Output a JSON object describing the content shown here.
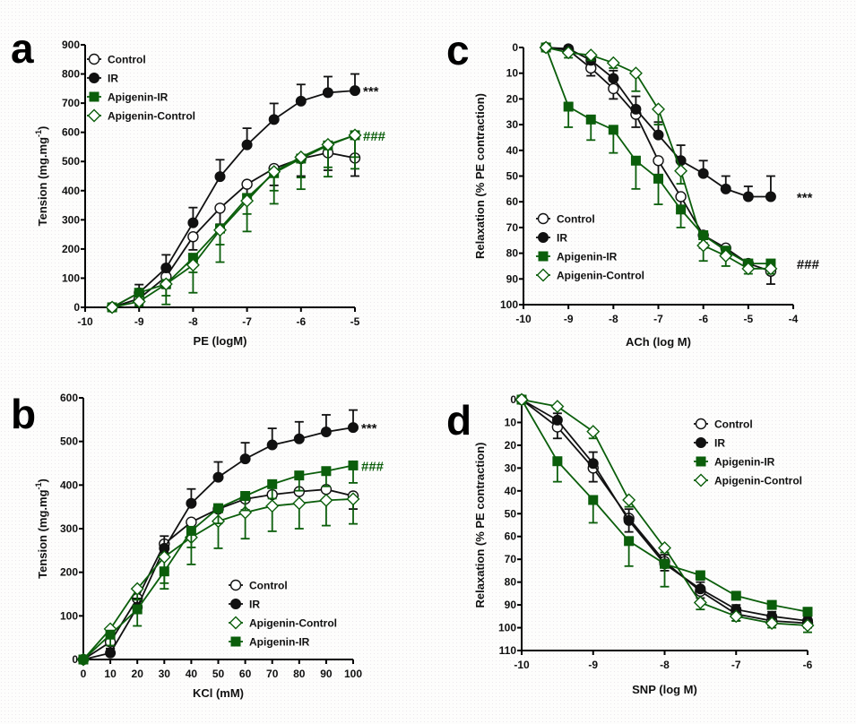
{
  "colors": {
    "black": "#111111",
    "green": "#0b5e0b",
    "white": "#ffffff"
  },
  "chart_data": [
    {
      "id": "a",
      "panel_label": "a",
      "type": "line",
      "xlabel": "PE (logM)",
      "ylabel": "Tension (mg.mg",
      "ylabel_sup": "-1",
      "ylabel_close": ")",
      "xlim": [
        -10,
        -5
      ],
      "ylim": [
        0,
        900
      ],
      "y_inverted": false,
      "xticks": [
        -10,
        -9,
        -8,
        -7,
        -6,
        -5
      ],
      "yticks": [
        0,
        100,
        200,
        300,
        400,
        500,
        600,
        700,
        800,
        900
      ],
      "legend_position": "top-left",
      "legend_order": [
        "Control",
        "IR",
        "Apigenin-IR",
        "Apigenin-Control"
      ],
      "x": [
        -9.5,
        -9,
        -8.5,
        -8,
        -7.5,
        -7,
        -6.5,
        -6,
        -5.5,
        -5
      ],
      "series": [
        {
          "name": "Control",
          "marker": "circle-open",
          "color": "black",
          "values": [
            0,
            30,
            105,
            242,
            340,
            422,
            476,
            510,
            530,
            512
          ],
          "err": [
            0,
            20,
            40,
            45,
            55,
            55,
            58,
            60,
            60,
            62
          ],
          "err_dir": -1
        },
        {
          "name": "IR",
          "marker": "circle-filled",
          "color": "black",
          "values": [
            0,
            50,
            135,
            290,
            448,
            557,
            644,
            707,
            736,
            743
          ],
          "err": [
            0,
            28,
            45,
            52,
            58,
            57,
            55,
            57,
            55,
            57
          ],
          "err_dir": 1
        },
        {
          "name": "Apigenin-IR",
          "marker": "square-filled",
          "color": "green",
          "values": [
            0,
            50,
            80,
            170,
            270,
            375,
            460,
            510,
            555,
            590
          ],
          "err": [
            0,
            25,
            40,
            50,
            55,
            55,
            60,
            65,
            75,
            75
          ],
          "err_dir": -1
        },
        {
          "name": "Apigenin-Control",
          "marker": "diamond-open",
          "color": "green",
          "values": [
            0,
            20,
            80,
            145,
            265,
            365,
            465,
            515,
            558,
            590
          ],
          "err": [
            0,
            15,
            70,
            95,
            110,
            105,
            110,
            110,
            110,
            115
          ],
          "err_dir": -1
        }
      ],
      "annotations": [
        {
          "text": "***",
          "series": "IR",
          "color": "black"
        },
        {
          "text": "###",
          "series": "Apigenin-IR",
          "color": "green"
        }
      ]
    },
    {
      "id": "b",
      "panel_label": "b",
      "type": "line",
      "xlabel": "KCl (mM)",
      "ylabel": "Tension (mg.mg",
      "ylabel_sup": "-1",
      "ylabel_close": ")",
      "xlim": [
        0,
        100
      ],
      "ylim": [
        0,
        600
      ],
      "y_inverted": false,
      "xticks": [
        0,
        10,
        20,
        30,
        40,
        50,
        60,
        70,
        80,
        90,
        100
      ],
      "yticks": [
        0,
        100,
        200,
        300,
        400,
        500,
        600
      ],
      "legend_position": "bottom-right",
      "legend_order": [
        "Control",
        "IR",
        "Apigenin-Control",
        "Apigenin-IR"
      ],
      "x": [
        0,
        10,
        20,
        30,
        40,
        50,
        60,
        70,
        80,
        90,
        100
      ],
      "series": [
        {
          "name": "Control",
          "marker": "circle-open",
          "color": "black",
          "values": [
            0,
            40,
            140,
            265,
            315,
            345,
            368,
            378,
            385,
            390,
            375
          ],
          "err": [
            0,
            15,
            25,
            20,
            25,
            25,
            25,
            25,
            25,
            28,
            30
          ],
          "err_dir": -1
        },
        {
          "name": "IR",
          "marker": "circle-filled",
          "color": "black",
          "values": [
            0,
            15,
            120,
            255,
            358,
            418,
            460,
            492,
            506,
            522,
            532
          ],
          "err": [
            0,
            10,
            20,
            28,
            33,
            35,
            37,
            38,
            39,
            39,
            40
          ],
          "err_dir": 1
        },
        {
          "name": "Apigenin-Control",
          "marker": "diamond-open",
          "color": "green",
          "values": [
            0,
            70,
            162,
            235,
            280,
            317,
            337,
            352,
            358,
            365,
            368
          ],
          "err": [
            0,
            20,
            25,
            60,
            62,
            62,
            60,
            58,
            58,
            58,
            57
          ],
          "err_dir": -1
        },
        {
          "name": "Apigenin-IR",
          "marker": "square-filled",
          "color": "green",
          "values": [
            0,
            57,
            115,
            202,
            295,
            347,
            375,
            402,
            422,
            432,
            445
          ],
          "err": [
            0,
            25,
            38,
            40,
            38,
            35,
            33,
            33,
            35,
            35,
            40
          ],
          "err_dir": -1
        }
      ],
      "annotations": [
        {
          "text": "***",
          "series": "IR",
          "color": "black"
        },
        {
          "text": "###",
          "series": "Apigenin-IR",
          "color": "green"
        }
      ]
    },
    {
      "id": "c",
      "panel_label": "c",
      "type": "line",
      "xlabel": "ACh (log M)",
      "ylabel": "Relaxation (% PE contraction)",
      "xlim": [
        -10,
        -4
      ],
      "ylim": [
        0,
        100
      ],
      "y_inverted": true,
      "xticks": [
        -10,
        -9,
        -8,
        -7,
        -6,
        -5,
        -4
      ],
      "yticks": [
        0,
        10,
        20,
        30,
        40,
        50,
        60,
        70,
        80,
        90,
        100
      ],
      "legend_position": "bottom-left",
      "legend_order": [
        "Control",
        "IR",
        "Apigenin-IR",
        "Apigenin-Control"
      ],
      "x": [
        -9.5,
        -9,
        -8.5,
        -8,
        -7.5,
        -7,
        -6.5,
        -6,
        -5.5,
        -5,
        -4.5
      ],
      "series": [
        {
          "name": "Control",
          "marker": "circle-open",
          "color": "black",
          "values": [
            0,
            1,
            8,
            16,
            26,
            44,
            58,
            73,
            78,
            84,
            87
          ],
          "err": [
            0,
            1,
            3,
            4,
            5,
            6,
            6,
            5,
            3,
            2,
            5
          ],
          "err_dir": 1
        },
        {
          "name": "IR",
          "marker": "circle-filled",
          "color": "black",
          "values": [
            0,
            0.5,
            5,
            12,
            24,
            34,
            44,
            49,
            55,
            58,
            58
          ],
          "err": [
            0,
            1,
            2,
            3,
            5,
            5,
            6,
            5,
            5,
            4,
            8
          ],
          "err_dir": -1
        },
        {
          "name": "Apigenin-IR",
          "marker": "square-filled",
          "color": "green",
          "values": [
            0,
            23,
            28,
            32,
            44,
            51,
            63,
            73,
            79,
            84,
            84
          ],
          "err": [
            0,
            8,
            8,
            9,
            11,
            10,
            7,
            3,
            2,
            2,
            2
          ],
          "err_dir": 1
        },
        {
          "name": "Apigenin-Control",
          "marker": "diamond-open",
          "color": "green",
          "values": [
            0,
            2,
            3,
            6,
            10,
            24,
            48,
            77,
            81,
            86,
            86
          ],
          "err": [
            0,
            2,
            2,
            2,
            7,
            6,
            5,
            6,
            4,
            2,
            2
          ],
          "err_dir": 1
        }
      ],
      "annotations": [
        {
          "text": "***",
          "series": "IR",
          "color": "black"
        },
        {
          "text": "###",
          "series": "Apigenin-IR",
          "color": "black"
        }
      ]
    },
    {
      "id": "d",
      "panel_label": "d",
      "type": "line",
      "xlabel": "SNP (log M)",
      "ylabel": "Relaxation (% PE contraction)",
      "xlim": [
        -10,
        -6
      ],
      "ylim": [
        0,
        110
      ],
      "y_inverted": true,
      "xticks": [
        -10,
        -9,
        -8,
        -7,
        -6
      ],
      "yticks": [
        0,
        10,
        20,
        30,
        40,
        50,
        60,
        70,
        80,
        90,
        100,
        110
      ],
      "legend_position": "top-right",
      "legend_order": [
        "Control",
        "IR",
        "Apigenin-IR",
        "Apigenin-Control"
      ],
      "x": [
        -10,
        -9.5,
        -9,
        -8.5,
        -8,
        -7.5,
        -7,
        -6.5,
        -6
      ],
      "series": [
        {
          "name": "Control",
          "marker": "circle-open",
          "color": "black",
          "values": [
            0,
            12,
            30,
            52,
            71,
            84,
            94,
            97,
            98
          ],
          "err": [
            0,
            5,
            6,
            6,
            4,
            3,
            3,
            2,
            2
          ],
          "err_dir": 1
        },
        {
          "name": "IR",
          "marker": "circle-filled",
          "color": "black",
          "values": [
            0,
            9,
            28,
            53,
            72,
            83,
            92,
            95,
            97
          ],
          "err": [
            0,
            3,
            5,
            5,
            4,
            3,
            2,
            2,
            2
          ],
          "err_dir": -1
        },
        {
          "name": "Apigenin-IR",
          "marker": "square-filled",
          "color": "green",
          "values": [
            0,
            27,
            44,
            62,
            72,
            77,
            86,
            90,
            93
          ],
          "err": [
            0,
            9,
            10,
            11,
            10,
            2,
            1,
            1,
            1
          ],
          "err_dir": 1
        },
        {
          "name": "Apigenin-Control",
          "marker": "diamond-open",
          "color": "green",
          "values": [
            0,
            3,
            14,
            44,
            65,
            89,
            95,
            98,
            99
          ],
          "err": [
            0,
            1,
            3,
            3,
            2,
            3,
            2,
            2,
            3
          ],
          "err_dir": 1
        }
      ],
      "annotations": []
    }
  ]
}
